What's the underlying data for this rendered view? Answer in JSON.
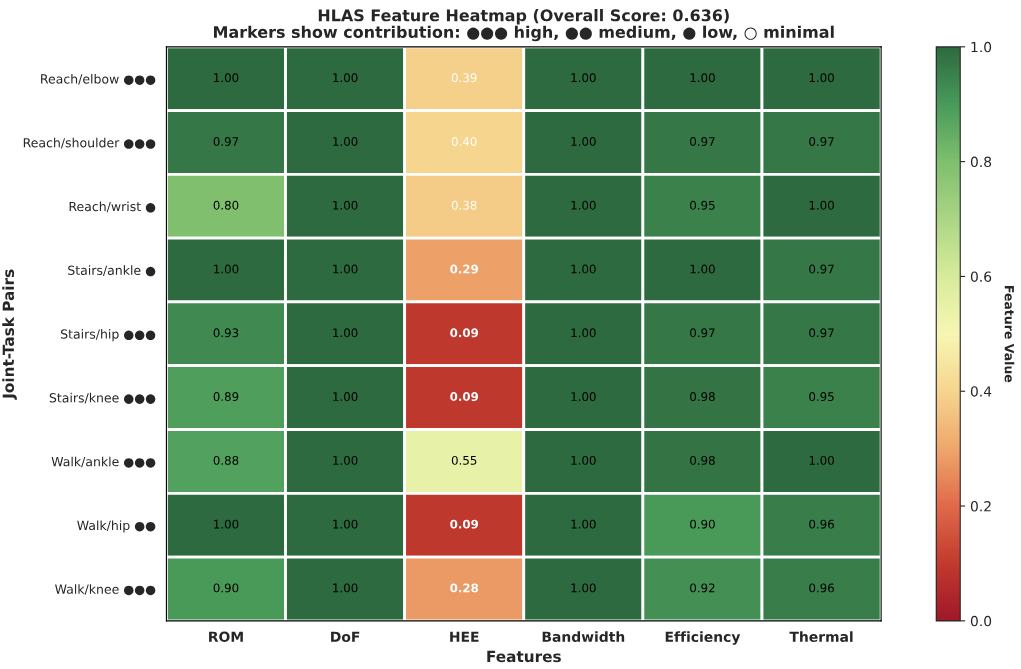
{
  "chart_data": {
    "type": "heatmap",
    "title": "HLAS Feature Heatmap (Overall Score: 0.636)",
    "subtitle": "Markers show contribution: ●●● high, ●● medium, ● low, ○ minimal",
    "xlabel": "Features",
    "ylabel": "Joint-Task Pairs",
    "clabel": "Feature Value",
    "categories": [
      "ROM",
      "DoF",
      "HEE",
      "Bandwidth",
      "Efficiency",
      "Thermal"
    ],
    "y_categories": [
      "Reach/elbow ●●●",
      "Reach/shoulder ●●●",
      "Reach/wrist ●",
      "Stairs/ankle ●",
      "Stairs/hip ●●●",
      "Stairs/knee ●●●",
      "Walk/ankle ●●●",
      "Walk/hip ●●",
      "Walk/knee ●●●"
    ],
    "cells": [
      [
        1.0,
        1.0,
        0.39,
        1.0,
        1.0,
        1.0
      ],
      [
        0.97,
        1.0,
        0.4,
        1.0,
        0.97,
        0.97
      ],
      [
        0.8,
        1.0,
        0.38,
        1.0,
        0.95,
        1.0
      ],
      [
        1.0,
        1.0,
        0.29,
        1.0,
        1.0,
        0.97
      ],
      [
        0.93,
        1.0,
        0.09,
        1.0,
        0.97,
        0.97
      ],
      [
        0.89,
        1.0,
        0.09,
        1.0,
        0.98,
        0.95
      ],
      [
        0.88,
        1.0,
        0.55,
        1.0,
        0.98,
        1.0
      ],
      [
        1.0,
        1.0,
        0.09,
        1.0,
        0.9,
        0.96
      ],
      [
        0.9,
        1.0,
        0.28,
        1.0,
        0.92,
        0.96
      ]
    ],
    "cell_labels": [
      [
        "1.00",
        "1.00",
        "0.39",
        "1.00",
        "1.00",
        "1.00"
      ],
      [
        "0.97",
        "1.00",
        "0.40",
        "1.00",
        "0.97",
        "0.97"
      ],
      [
        "0.80",
        "1.00",
        "0.38",
        "1.00",
        "0.95",
        "1.00"
      ],
      [
        "1.00",
        "1.00",
        "0.29",
        "1.00",
        "1.00",
        "0.97"
      ],
      [
        "0.93",
        "1.00",
        "0.09",
        "1.00",
        "0.97",
        "0.97"
      ],
      [
        "0.89",
        "1.00",
        "0.09",
        "1.00",
        "0.98",
        "0.95"
      ],
      [
        "0.88",
        "1.00",
        "0.55",
        "1.00",
        "0.98",
        "1.00"
      ],
      [
        "1.00",
        "1.00",
        "0.09",
        "1.00",
        "0.90",
        "0.96"
      ],
      [
        "0.90",
        "1.00",
        "0.28",
        "1.00",
        "0.92",
        "0.96"
      ]
    ],
    "clim": [
      0,
      1
    ],
    "cticks": [
      {
        "value": 0,
        "label": "0.0"
      },
      0.2,
      0.4,
      0.6,
      0.8,
      {
        "value": 1,
        "label": "1.0"
      }
    ]
  }
}
